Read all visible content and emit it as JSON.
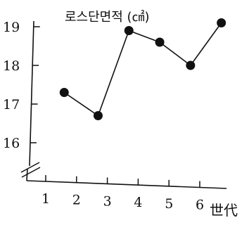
{
  "chart_data": {
    "type": "line",
    "title": "로스단면적 (㎠)",
    "xlabel": "世代",
    "ylabel": "",
    "x_ticks": [
      1,
      2,
      3,
      4,
      5,
      6
    ],
    "y_ticks": [
      16,
      17,
      18,
      19
    ],
    "xlim": [
      0.5,
      7.3
    ],
    "ylim": [
      15.5,
      19.4
    ],
    "y_axis_broken": true,
    "grid": false,
    "series": [
      {
        "x": [
          1.6,
          2.7,
          3.7,
          4.7,
          5.7,
          6.7
        ],
        "values": [
          17.3,
          16.7,
          18.9,
          18.6,
          18.0,
          19.1
        ]
      }
    ],
    "colors": {
      "ink": "#111111",
      "background": "#ffffff"
    }
  }
}
